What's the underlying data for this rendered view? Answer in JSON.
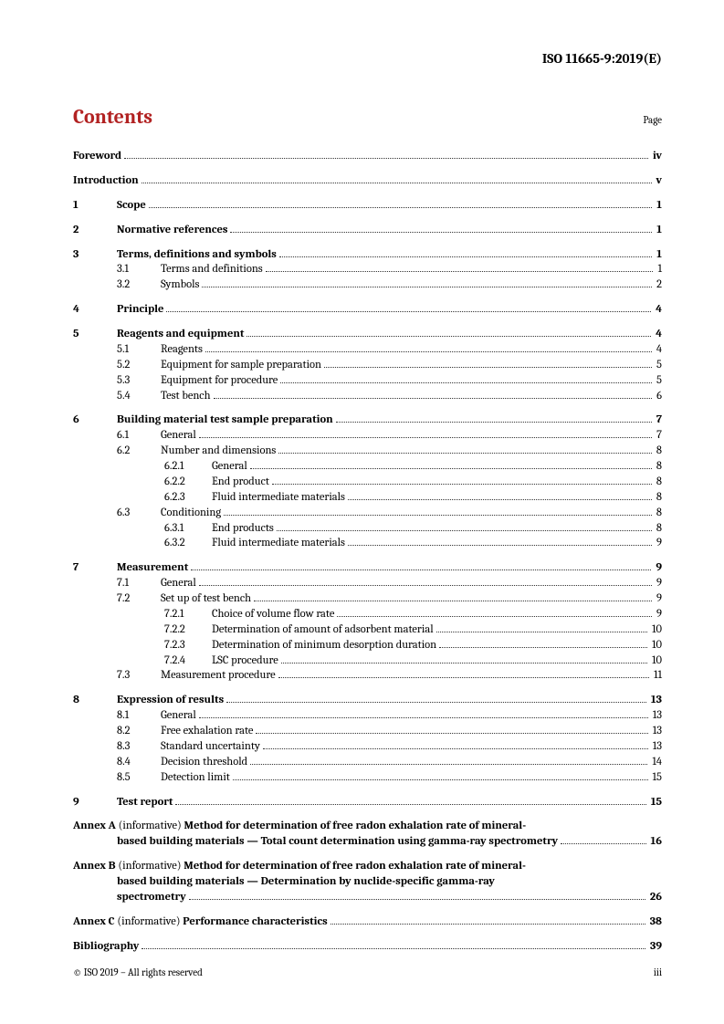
{
  "doc_header": "ISO 11665-9:2019(E)",
  "contents_title": "Contents",
  "page_label": "Page",
  "front_matter": [
    {
      "title": "Foreword",
      "page": "iv"
    },
    {
      "title": "Introduction",
      "page": "v"
    }
  ],
  "sections": [
    {
      "num": "1",
      "title": "Scope",
      "page": "1"
    },
    {
      "num": "2",
      "title": "Normative references",
      "page": "1"
    },
    {
      "num": "3",
      "title": "Terms, definitions and symbols",
      "page": "1",
      "subs": [
        {
          "num": "3.1",
          "title": "Terms and definitions",
          "page": "1"
        },
        {
          "num": "3.2",
          "title": "Symbols",
          "page": "2"
        }
      ]
    },
    {
      "num": "4",
      "title": "Principle",
      "page": "4"
    },
    {
      "num": "5",
      "title": "Reagents and equipment",
      "page": "4",
      "subs": [
        {
          "num": "5.1",
          "title": "Reagents",
          "page": "4"
        },
        {
          "num": "5.2",
          "title": "Equipment for sample preparation",
          "page": "5"
        },
        {
          "num": "5.3",
          "title": "Equipment for procedure",
          "page": "5"
        },
        {
          "num": "5.4",
          "title": "Test bench",
          "page": "6"
        }
      ]
    },
    {
      "num": "6",
      "title": "Building material test sample preparation",
      "page": "7",
      "subs": [
        {
          "num": "6.1",
          "title": "General",
          "page": "7"
        },
        {
          "num": "6.2",
          "title": "Number and dimensions",
          "page": "8",
          "subs": [
            {
              "num": "6.2.1",
              "title": "General",
              "page": "8"
            },
            {
              "num": "6.2.2",
              "title": "End product",
              "page": "8"
            },
            {
              "num": "6.2.3",
              "title": "Fluid intermediate materials",
              "page": "8"
            }
          ]
        },
        {
          "num": "6.3",
          "title": "Conditioning",
          "page": "8",
          "subs": [
            {
              "num": "6.3.1",
              "title": "End products",
              "page": "8"
            },
            {
              "num": "6.3.2",
              "title": "Fluid intermediate materials",
              "page": "9"
            }
          ]
        }
      ]
    },
    {
      "num": "7",
      "title": "Measurement",
      "page": "9",
      "subs": [
        {
          "num": "7.1",
          "title": "General",
          "page": "9"
        },
        {
          "num": "7.2",
          "title": "Set up of test bench",
          "page": "9",
          "subs": [
            {
              "num": "7.2.1",
              "title": "Choice of volume flow rate",
              "page": "9"
            },
            {
              "num": "7.2.2",
              "title": "Determination of amount of adsorbent material",
              "page": "10"
            },
            {
              "num": "7.2.3",
              "title": "Determination of minimum desorption duration",
              "page": "10"
            },
            {
              "num": "7.2.4",
              "title": "LSC procedure",
              "page": "10"
            }
          ]
        },
        {
          "num": "7.3",
          "title": "Measurement procedure",
          "page": "11"
        }
      ]
    },
    {
      "num": "8",
      "title": "Expression of results",
      "page": "13",
      "subs": [
        {
          "num": "8.1",
          "title": "General",
          "page": "13"
        },
        {
          "num": "8.2",
          "title": "Free exhalation rate",
          "page": "13"
        },
        {
          "num": "8.3",
          "title": "Standard uncertainty",
          "page": "13"
        },
        {
          "num": "8.4",
          "title": "Decision threshold",
          "page": "14"
        },
        {
          "num": "8.5",
          "title": "Detection limit",
          "page": "15"
        }
      ]
    },
    {
      "num": "9",
      "title": "Test report",
      "page": "15"
    }
  ],
  "annexes": [
    {
      "label": "Annex A",
      "info": "(informative)",
      "lines": [
        "Method for determination of free radon exhalation rate of mineral-",
        "based building materials — Total count determination using gamma-ray spectrometry"
      ],
      "page": "16"
    },
    {
      "label": "Annex B",
      "info": "(informative)",
      "lines": [
        "Method for determination of free radon exhalation rate of mineral-",
        "based building materials — Determination by nuclide-specific gamma-ray",
        "spectrometry"
      ],
      "page": "26"
    },
    {
      "label": "Annex C",
      "info": "(informative)",
      "lines": [
        "Performance characteristics"
      ],
      "page": "38"
    }
  ],
  "bibliography": {
    "title": "Bibliography",
    "page": "39"
  },
  "footer_left": "© ISO 2019 – All rights reserved",
  "footer_right": "iii",
  "colors": {
    "heading": "#b22222",
    "text": "#000000",
    "leader": "#333333",
    "background": "#ffffff"
  }
}
